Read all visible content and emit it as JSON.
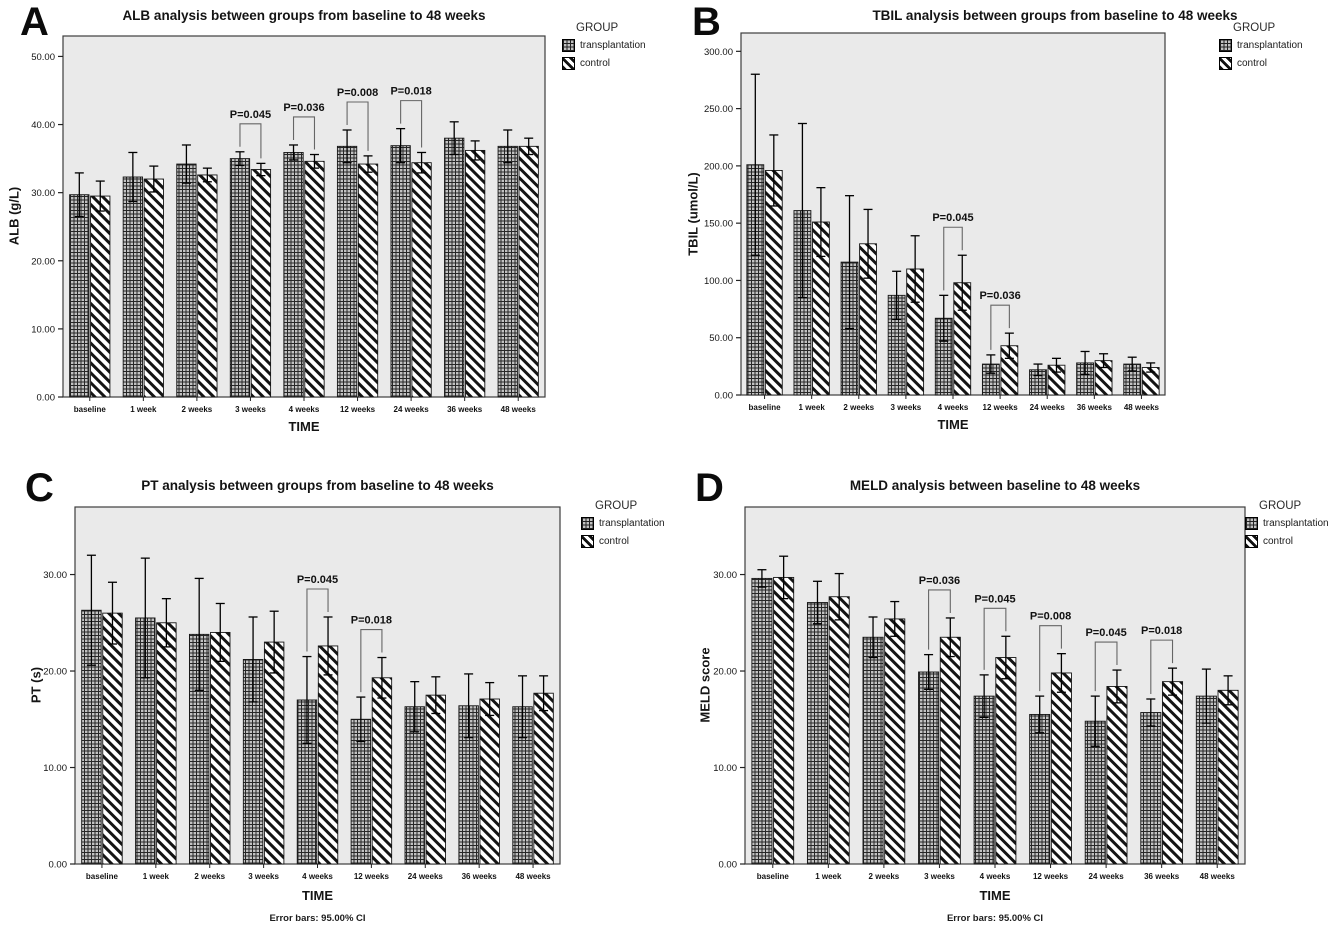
{
  "figure": {
    "legend_title": "GROUP",
    "series_labels": [
      "transplantation",
      "control"
    ],
    "error_caption": "Error bars: 95.00% CI",
    "colors": {
      "plot_background": "#eaeaea",
      "bar_outline": "#161616",
      "error_bar": "#000000",
      "bracket": "#666666",
      "text": "#141414"
    }
  },
  "chart_data": [
    {
      "id": "A",
      "panel_letter": "A",
      "type": "bar",
      "title": "ALB analysis between groups from baseline to 48 weeks",
      "ylabel": "ALB (g/L)",
      "xlabel": "TIME",
      "ylim": [
        0,
        53
      ],
      "yticks": [
        0,
        10,
        20,
        30,
        40,
        50
      ],
      "ytick_labels": [
        "0.00",
        "10.00",
        "20.00",
        "30.00",
        "40.00",
        "50.00"
      ],
      "categories": [
        "baseline",
        "1 week",
        "2 weeks",
        "3 weeks",
        "4 weeks",
        "12 weeks",
        "24 weeks",
        "36 weeks",
        "48 weeks"
      ],
      "series": [
        {
          "name": "transplantation",
          "pattern": "crosshatch",
          "values": [
            29.7,
            32.3,
            34.2,
            35.0,
            35.9,
            36.8,
            36.9,
            38.0,
            36.8
          ],
          "errors": [
            3.2,
            3.6,
            2.8,
            1.0,
            1.1,
            2.4,
            2.5,
            2.4,
            2.4
          ]
        },
        {
          "name": "control",
          "pattern": "diagonal",
          "values": [
            29.5,
            32.0,
            32.6,
            33.4,
            34.6,
            34.2,
            34.4,
            36.2,
            36.8
          ],
          "errors": [
            2.2,
            1.9,
            1.0,
            0.9,
            1.0,
            1.2,
            1.5,
            1.4,
            1.2
          ]
        }
      ],
      "annotations": [
        {
          "category": "3 weeks",
          "label": "P=0.045"
        },
        {
          "category": "4 weeks",
          "label": "P=0.036"
        },
        {
          "category": "12 weeks",
          "label": "P=0.008"
        },
        {
          "category": "24 weeks",
          "label": "P=0.018"
        }
      ],
      "legend_position": "right",
      "grid": false
    },
    {
      "id": "B",
      "panel_letter": "B",
      "type": "bar",
      "title": "TBIL analysis between groups from baseline to 48 weeks",
      "ylabel": "TBIL (umol/L)",
      "xlabel": "TIME",
      "ylim": [
        0,
        316
      ],
      "yticks": [
        0,
        50,
        100,
        150,
        200,
        250,
        300
      ],
      "ytick_labels": [
        "0.00",
        "50.00",
        "100.00",
        "150.00",
        "200.00",
        "250.00",
        "300.00"
      ],
      "categories": [
        "baseline",
        "1 week",
        "2 weeks",
        "3 weeks",
        "4 weeks",
        "12 weeks",
        "24 weeks",
        "36 weeks",
        "48 weeks"
      ],
      "series": [
        {
          "name": "transplantation",
          "pattern": "crosshatch",
          "values": [
            201,
            161,
            116,
            87,
            67,
            27,
            22,
            28,
            27
          ],
          "errors": [
            79,
            76,
            58,
            21,
            20,
            8,
            5,
            10,
            6
          ]
        },
        {
          "name": "control",
          "pattern": "diagonal",
          "values": [
            196,
            151,
            132,
            110,
            98,
            43,
            26,
            30,
            24
          ],
          "errors": [
            31,
            30,
            30,
            29,
            24,
            11,
            6,
            6,
            4
          ]
        }
      ],
      "annotations": [
        {
          "category": "4 weeks",
          "label": "P=0.045"
        },
        {
          "category": "12 weeks",
          "label": "P=0.036"
        }
      ],
      "legend_position": "right",
      "grid": false
    },
    {
      "id": "C",
      "panel_letter": "C",
      "type": "bar",
      "title": "PT analysis between groups from baseline to 48 weeks",
      "ylabel": "PT (s)",
      "xlabel": "TIME",
      "ylim": [
        0,
        37
      ],
      "yticks": [
        0,
        10,
        20,
        30
      ],
      "ytick_labels": [
        "0.00",
        "10.00",
        "20.00",
        "30.00"
      ],
      "categories": [
        "baseline",
        "1 week",
        "2 weeks",
        "3 weeks",
        "4 weeks",
        "12 weeks",
        "24 weeks",
        "36 weeks",
        "48 weeks"
      ],
      "series": [
        {
          "name": "transplantation",
          "pattern": "crosshatch",
          "values": [
            26.3,
            25.5,
            23.8,
            21.2,
            17.0,
            15.0,
            16.3,
            16.4,
            16.3
          ],
          "errors": [
            5.7,
            6.2,
            5.8,
            4.4,
            4.5,
            2.3,
            2.6,
            3.3,
            3.2
          ]
        },
        {
          "name": "control",
          "pattern": "diagonal",
          "values": [
            26.0,
            25.0,
            24.0,
            23.0,
            22.6,
            19.3,
            17.5,
            17.1,
            17.7
          ],
          "errors": [
            3.2,
            2.5,
            3.0,
            3.2,
            3.0,
            2.1,
            1.9,
            1.7,
            1.8
          ]
        }
      ],
      "annotations": [
        {
          "category": "4 weeks",
          "label": "P=0.045"
        },
        {
          "category": "12 weeks",
          "label": "P=0.018"
        }
      ],
      "error_caption": "Error bars: 95.00% CI",
      "legend_position": "right",
      "grid": false
    },
    {
      "id": "D",
      "panel_letter": "D",
      "type": "bar",
      "title": "MELD analysis between baseline to 48 weeks",
      "ylabel": "MELD score",
      "xlabel": "TIME",
      "ylim": [
        0,
        37
      ],
      "yticks": [
        0,
        10,
        20,
        30
      ],
      "ytick_labels": [
        "0.00",
        "10.00",
        "20.00",
        "30.00"
      ],
      "categories": [
        "baseline",
        "1 week",
        "2 weeks",
        "3 weeks",
        "4 weeks",
        "12 weeks",
        "24 weeks",
        "36 weeks",
        "48 weeks"
      ],
      "series": [
        {
          "name": "transplantation",
          "pattern": "crosshatch",
          "values": [
            29.6,
            27.1,
            23.5,
            19.9,
            17.4,
            15.5,
            14.8,
            15.7,
            17.4
          ],
          "errors": [
            0.9,
            2.2,
            2.1,
            1.8,
            2.2,
            1.9,
            2.6,
            1.4,
            2.8
          ]
        },
        {
          "name": "control",
          "pattern": "diagonal",
          "values": [
            29.7,
            27.7,
            25.4,
            23.5,
            21.4,
            19.8,
            18.4,
            18.9,
            18.0
          ],
          "errors": [
            2.2,
            2.4,
            1.8,
            2.0,
            2.2,
            2.0,
            1.7,
            1.4,
            1.5
          ]
        }
      ],
      "annotations": [
        {
          "category": "3 weeks",
          "label": "P=0.036"
        },
        {
          "category": "4 weeks",
          "label": "P=0.045"
        },
        {
          "category": "12 weeks",
          "label": "P=0.008"
        },
        {
          "category": "24 weeks",
          "label": "P=0.045"
        },
        {
          "category": "36 weeks",
          "label": "P=0.018"
        }
      ],
      "error_caption": "Error bars: 95.00% CI",
      "legend_position": "right",
      "grid": false
    }
  ]
}
